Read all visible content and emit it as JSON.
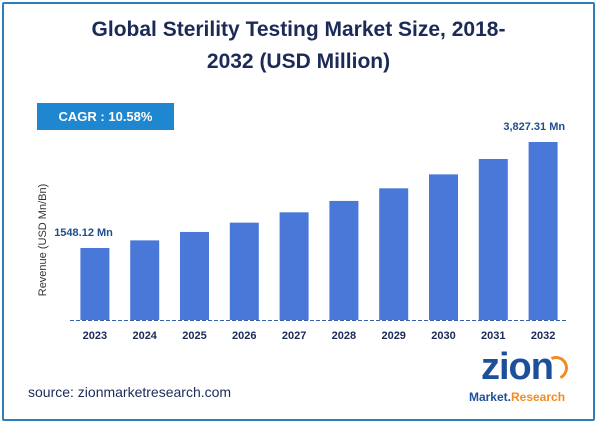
{
  "title_line1": "Global Sterility Testing Market Size, 2018-",
  "title_line2": "2032 (USD Million)",
  "cagr_label": "CAGR : 10.58%",
  "source": "source: zionmarketresearch.com",
  "logo": {
    "name": "zion",
    "tagline_left": "Market",
    "tagline_right": "Research"
  },
  "colors": {
    "bar": "#4a78d8",
    "title": "#1b2a57",
    "cagr_bg": "#1f86d0",
    "border": "#2e7fb8",
    "label": "#1f4e8c"
  },
  "chart_data": {
    "type": "bar",
    "title": "Global Sterility Testing Market Size, 2018-2032 (USD Million)",
    "ylabel": "Revenue (USD Mn/Bn)",
    "xlabel": "",
    "categories": [
      "2023",
      "2024",
      "2025",
      "2026",
      "2027",
      "2028",
      "2029",
      "2030",
      "2031",
      "2032"
    ],
    "values": [
      1548.12,
      1712,
      1893,
      2093,
      2315,
      2560,
      2831,
      3131,
      3462,
      3827.31
    ],
    "data_labels": [
      {
        "index": 0,
        "text": "1548.12 Mn"
      },
      {
        "index": 9,
        "text": "3,827.31 Mn"
      }
    ],
    "ylim": [
      0,
      4300
    ],
    "grid": false,
    "legend": "none"
  }
}
